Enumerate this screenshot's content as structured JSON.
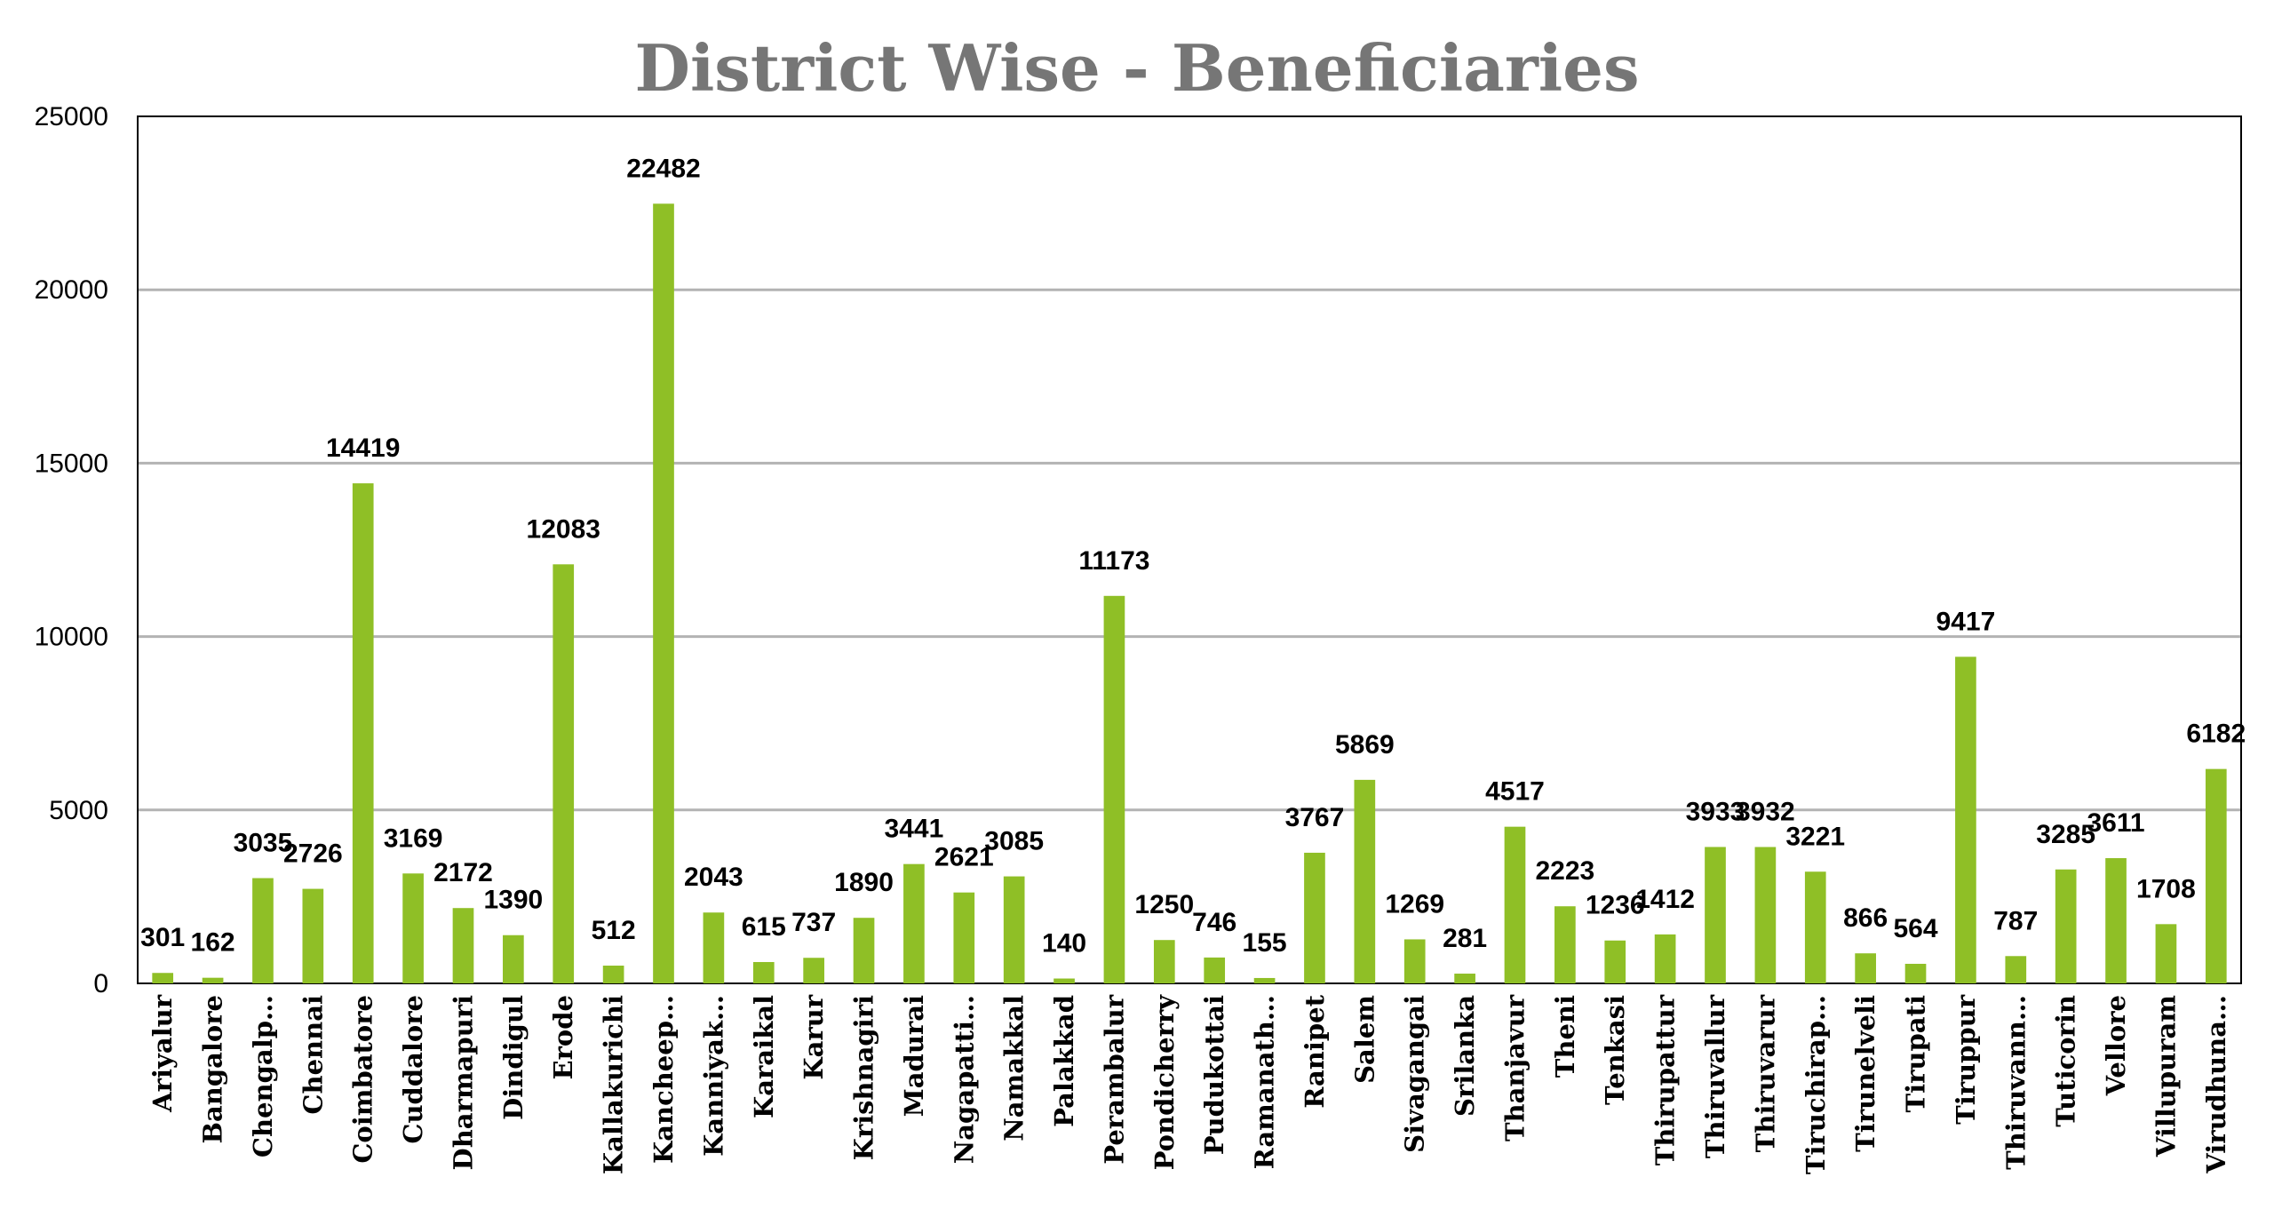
{
  "chart_data": {
    "type": "bar",
    "title": "District Wise - Beneficiaries",
    "xlabel": "",
    "ylabel": "",
    "ylim": [
      0,
      25000
    ],
    "yticks": [
      0,
      5000,
      10000,
      15000,
      20000,
      25000
    ],
    "grid": true,
    "legend": "none",
    "bar_color": "#8fbf26",
    "categories": [
      "Ariyalur",
      "Bangalore",
      "Chengalp…",
      "Chennai",
      "Coimbatore",
      "Cuddalore",
      "Dharmapuri",
      "Dindigul",
      "Erode",
      "Kallakurichi",
      "Kancheep…",
      "Kanniyak…",
      "Karaikal",
      "Karur",
      "Krishnagiri",
      "Madurai",
      "Nagapatti…",
      "Namakkal",
      "Palakkad",
      "Perambalur",
      "Pondicherry",
      "Pudukottai",
      "Ramanath…",
      "Ranipet",
      "Salem",
      "Sivagangai",
      "Srilanka",
      "Thanjavur",
      "Theni",
      "Tenkasi",
      "Thirupattur",
      "Thiruvallur",
      "Thiruvarur",
      "Tiruchirap…",
      "Tirunelveli",
      "Tirupati",
      "Tiruppur",
      "Thiruvann…",
      "Tuticorin",
      "Vellore",
      "Villupuram",
      "Virudhuna…"
    ],
    "values": [
      301,
      162,
      3035,
      2726,
      14419,
      3169,
      2172,
      1390,
      12083,
      512,
      22482,
      2043,
      615,
      737,
      1890,
      3441,
      2621,
      3085,
      140,
      11173,
      1250,
      746,
      155,
      3767,
      5869,
      1269,
      281,
      4517,
      2223,
      1236,
      1412,
      3933,
      3932,
      3221,
      866,
      564,
      9417,
      787,
      3285,
      3611,
      1708,
      6182
    ]
  }
}
